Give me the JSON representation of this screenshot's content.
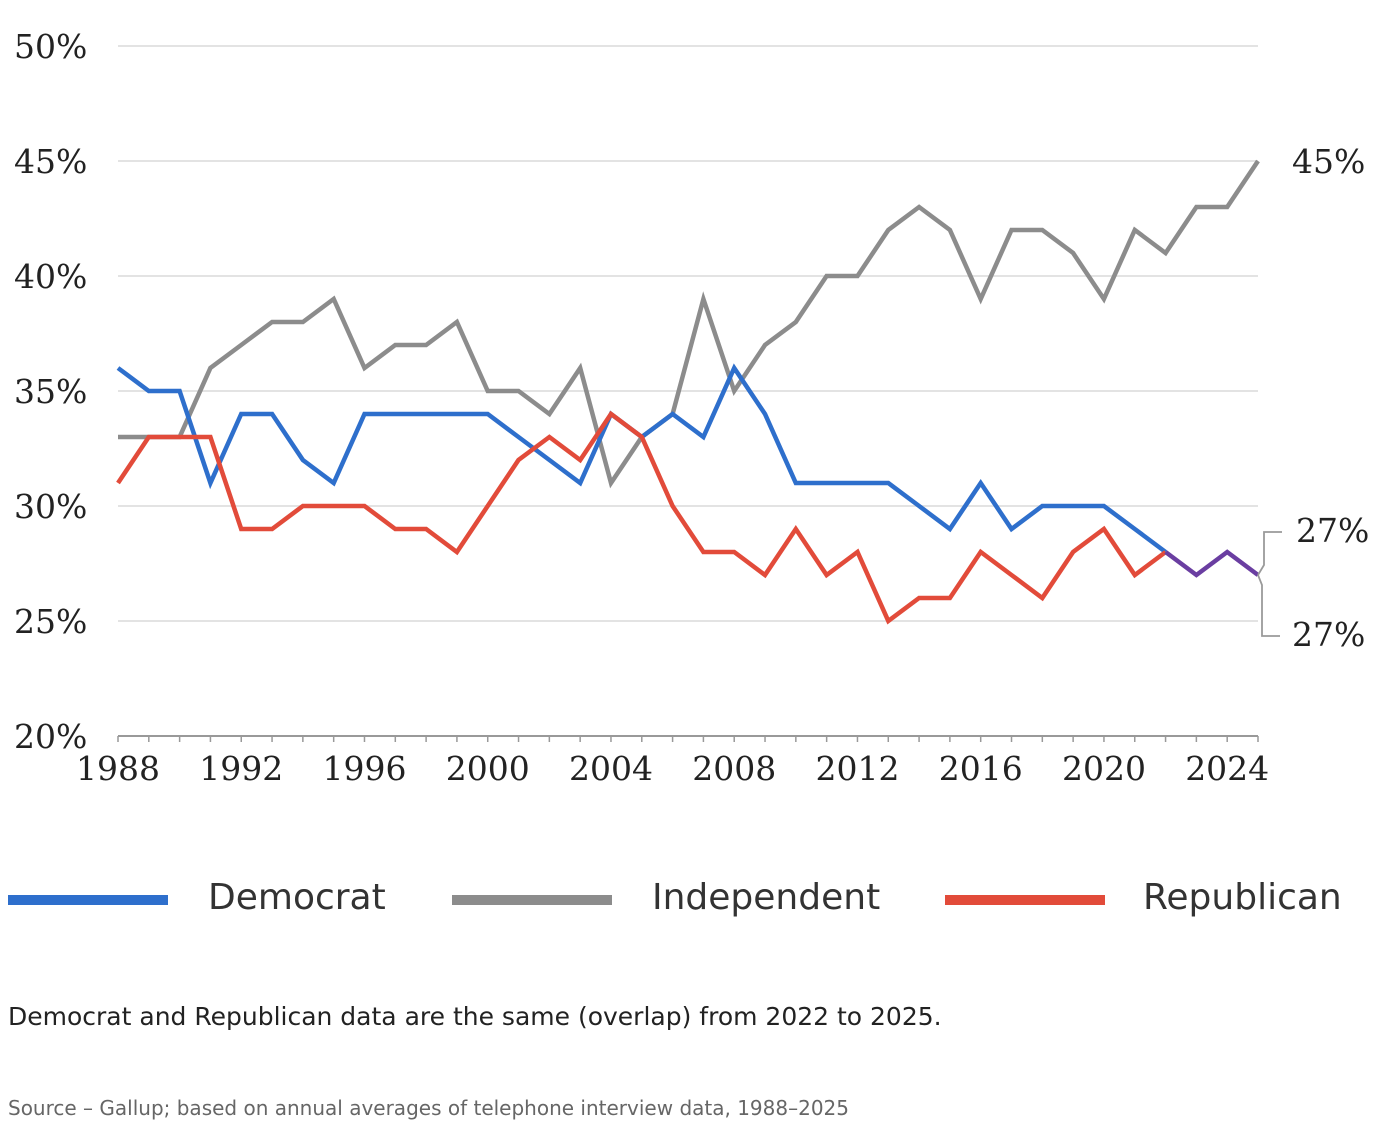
{
  "chart_data": {
    "type": "line",
    "x": [
      1988,
      1989,
      1990,
      1991,
      1992,
      1993,
      1994,
      1995,
      1996,
      1997,
      1998,
      1999,
      2000,
      2001,
      2002,
      2003,
      2004,
      2005,
      2006,
      2007,
      2008,
      2009,
      2010,
      2011,
      2012,
      2013,
      2014,
      2015,
      2016,
      2017,
      2018,
      2019,
      2020,
      2021,
      2022,
      2023,
      2024,
      2025
    ],
    "series": [
      {
        "name": "Democrat",
        "color": "#2e6fcc",
        "values": [
          36,
          35,
          35,
          31,
          34,
          34,
          32,
          31,
          34,
          34,
          34,
          34,
          34,
          33,
          32,
          31,
          34,
          33,
          34,
          33,
          36,
          34,
          31,
          31,
          31,
          31,
          30,
          29,
          31,
          29,
          30,
          30,
          30,
          29,
          28,
          27,
          28,
          27
        ]
      },
      {
        "name": "Independent",
        "color": "#8c8c8c",
        "values": [
          33,
          33,
          33,
          36,
          37,
          38,
          38,
          39,
          36,
          37,
          37,
          38,
          35,
          35,
          34,
          36,
          31,
          33,
          34,
          39,
          35,
          37,
          38,
          40,
          40,
          42,
          43,
          42,
          39,
          42,
          42,
          41,
          39,
          42,
          41,
          43,
          43,
          45
        ]
      },
      {
        "name": "Republican",
        "color": "#e24b3a",
        "values": [
          31,
          33,
          33,
          33,
          29,
          29,
          30,
          30,
          30,
          29,
          29,
          28,
          30,
          32,
          33,
          32,
          34,
          33,
          30,
          28,
          28,
          27,
          29,
          27,
          28,
          25,
          26,
          26,
          28,
          27,
          26,
          28,
          29,
          27,
          28,
          27,
          28,
          27
        ]
      }
    ],
    "overlap_color": "#6a3ea1",
    "overlap_start": 2022,
    "ylim": [
      20,
      50
    ],
    "xlim": [
      1988,
      2025
    ],
    "y_ticks": [
      "20%",
      "25%",
      "30%",
      "35%",
      "40%",
      "45%",
      "50%"
    ],
    "x_ticks": [
      "1988",
      "1992",
      "1996",
      "2000",
      "2004",
      "2008",
      "2012",
      "2016",
      "2020",
      "2024"
    ],
    "end_labels": {
      "independent": "45%",
      "democrat": "27%",
      "republican": "27%"
    },
    "grid": true,
    "legend_position": "bottom"
  },
  "legend": [
    {
      "label": "Democrat",
      "color": "#2e6fcc"
    },
    {
      "label": "Independent",
      "color": "#8c8c8c"
    },
    {
      "label": "Republican",
      "color": "#e24b3a"
    }
  ],
  "note": "Democrat and Republican data are the same (overlap) from 2022 to 2025.",
  "source": "Source – Gallup; based on annual averages of telephone interview data, 1988–2025"
}
